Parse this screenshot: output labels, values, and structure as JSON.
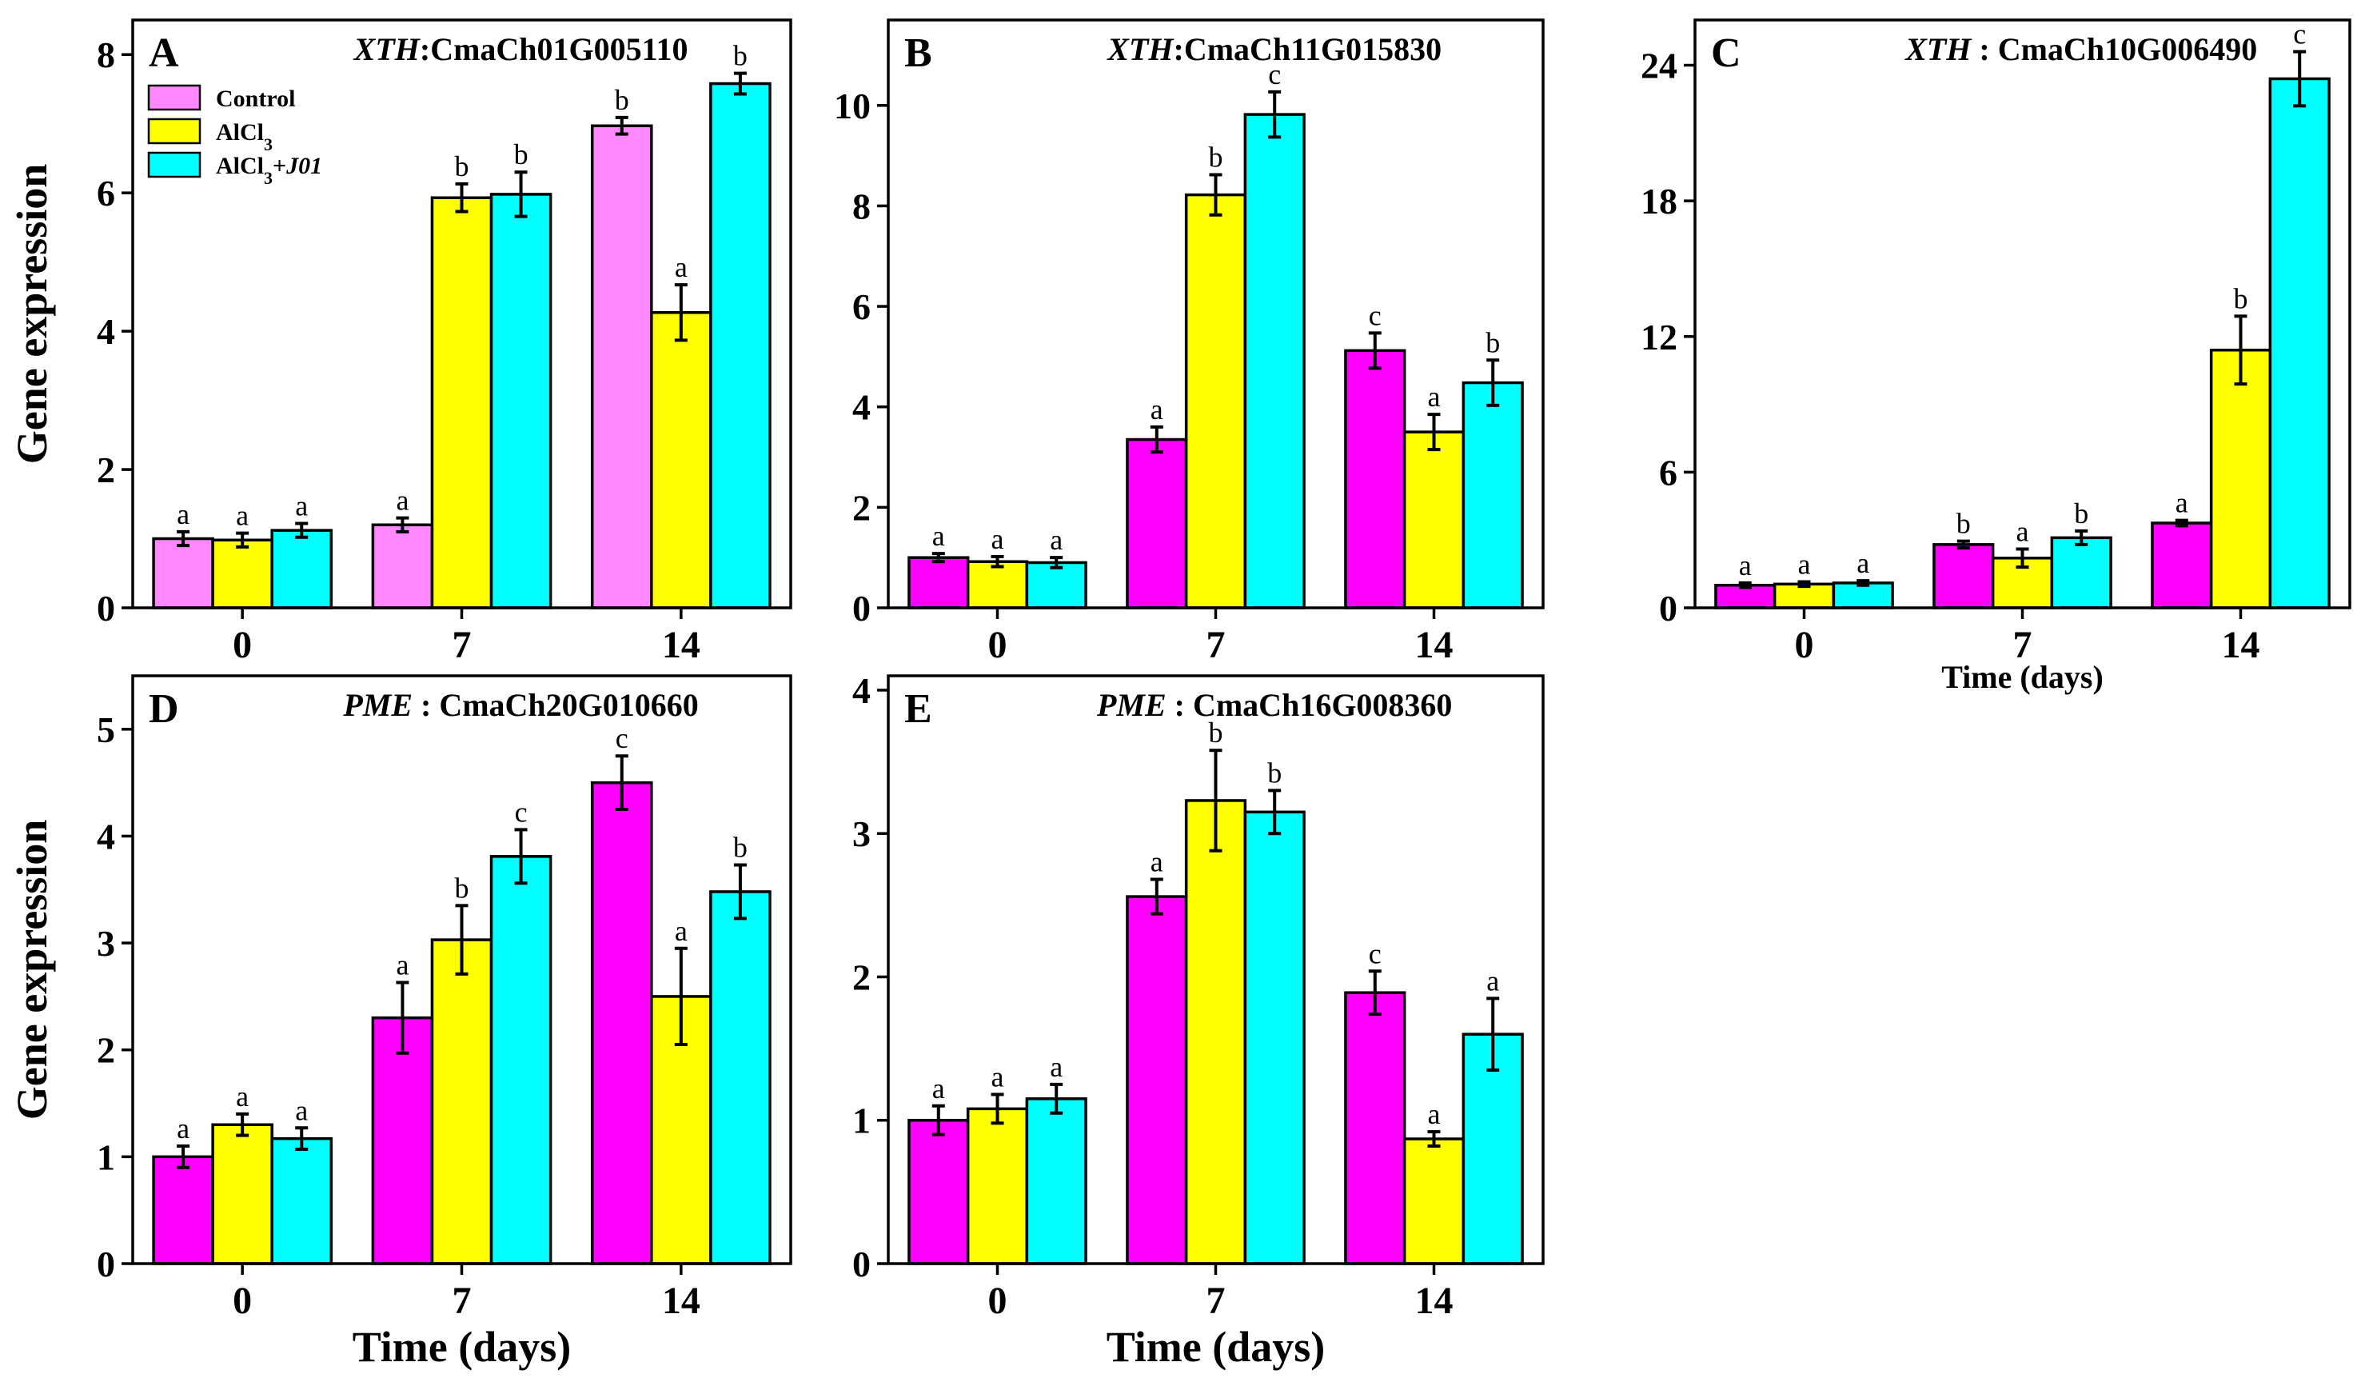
{
  "chart_data": [
    {
      "type": "bar",
      "panel_label": "A",
      "title": {
        "gene": "XTH",
        "sep": ":",
        "id": "CmaCh01G005110"
      },
      "categories": [
        "0",
        "7",
        "14"
      ],
      "ylim": [
        0,
        8.5
      ],
      "yticks": [
        "0",
        "2",
        "4",
        "6",
        "8"
      ],
      "ylabel": "Gene expression",
      "xlabel": "",
      "colors": [
        "#ff88ff",
        "#ffff00",
        "#00ffff"
      ],
      "legend": {
        "position": "top-left",
        "entries": [
          {
            "text": "Control"
          },
          {
            "text": "AlCl",
            "sub": "3"
          },
          {
            "text": "AlCl",
            "sub": "3",
            "tail": "+",
            "tail_italic": "J01"
          }
        ]
      },
      "series": [
        {
          "name": "Control",
          "values": [
            1.0,
            1.2,
            6.97
          ],
          "errors": [
            0.1,
            0.1,
            0.12
          ],
          "letters": [
            "a",
            "a",
            "b"
          ]
        },
        {
          "name": "AlCl3",
          "values": [
            0.98,
            5.93,
            4.27
          ],
          "errors": [
            0.1,
            0.2,
            0.4
          ],
          "letters": [
            "a",
            "b",
            "a"
          ]
        },
        {
          "name": "AlCl3+J01",
          "values": [
            1.12,
            5.98,
            7.58
          ],
          "errors": [
            0.1,
            0.32,
            0.15
          ],
          "letters": [
            "a",
            "b",
            "b"
          ]
        }
      ]
    },
    {
      "type": "bar",
      "panel_label": "B",
      "title": {
        "gene": "XTH",
        "sep": ":",
        "id": "CmaCh11G015830"
      },
      "categories": [
        "0",
        "7",
        "14"
      ],
      "ylim": [
        0,
        11.7
      ],
      "yticks": [
        "0",
        "2",
        "4",
        "6",
        "8",
        "10"
      ],
      "ylabel": "",
      "xlabel": "",
      "colors": [
        "#ff00ff",
        "#ffff00",
        "#00ffff"
      ],
      "series": [
        {
          "name": "Control",
          "values": [
            1.0,
            3.35,
            5.12
          ],
          "errors": [
            0.08,
            0.25,
            0.35
          ],
          "letters": [
            "a",
            "a",
            "c"
          ]
        },
        {
          "name": "AlCl3",
          "values": [
            0.92,
            8.22,
            3.5
          ],
          "errors": [
            0.1,
            0.4,
            0.35
          ],
          "letters": [
            "a",
            "b",
            "a"
          ]
        },
        {
          "name": "AlCl3+J01",
          "values": [
            0.9,
            9.82,
            4.48
          ],
          "errors": [
            0.1,
            0.45,
            0.45
          ],
          "letters": [
            "a",
            "c",
            "b"
          ]
        }
      ]
    },
    {
      "type": "bar",
      "panel_label": "C",
      "title": {
        "gene": "XTH",
        "sep": " : ",
        "id": "CmaCh10G006490"
      },
      "categories": [
        "0",
        "7",
        "14"
      ],
      "ylim": [
        0,
        26
      ],
      "yticks": [
        "0",
        "6",
        "12",
        "18",
        "24"
      ],
      "ylabel": "",
      "xlabel": "Time (days)",
      "colors": [
        "#ff00ff",
        "#ffff00",
        "#00ffff"
      ],
      "series": [
        {
          "name": "Control",
          "values": [
            1.0,
            2.8,
            3.75
          ],
          "errors": [
            0.1,
            0.15,
            0.12
          ],
          "letters": [
            "a",
            "b",
            "a"
          ]
        },
        {
          "name": "AlCl3",
          "values": [
            1.05,
            2.2,
            11.4
          ],
          "errors": [
            0.1,
            0.4,
            1.5
          ],
          "letters": [
            "a",
            "a",
            "b"
          ]
        },
        {
          "name": "AlCl3+J01",
          "values": [
            1.1,
            3.1,
            23.4
          ],
          "errors": [
            0.1,
            0.3,
            1.2
          ],
          "letters": [
            "a",
            "b",
            "c"
          ]
        }
      ]
    },
    {
      "type": "bar",
      "panel_label": "D",
      "title": {
        "gene": "PME",
        "sep": " : ",
        "id": "CmaCh20G010660"
      },
      "categories": [
        "0",
        "7",
        "14"
      ],
      "ylim": [
        0,
        5.5
      ],
      "yticks": [
        "0",
        "1",
        "2",
        "3",
        "4",
        "5"
      ],
      "ylabel": "Gene expression",
      "xlabel": "Time (days)",
      "colors": [
        "#ff00ff",
        "#ffff00",
        "#00ffff"
      ],
      "series": [
        {
          "name": "Control",
          "values": [
            1.0,
            2.3,
            4.5
          ],
          "errors": [
            0.1,
            0.33,
            0.25
          ],
          "letters": [
            "a",
            "a",
            "c"
          ]
        },
        {
          "name": "AlCl3",
          "values": [
            1.3,
            3.03,
            2.5
          ],
          "errors": [
            0.1,
            0.32,
            0.45
          ],
          "letters": [
            "a",
            "b",
            "a"
          ]
        },
        {
          "name": "AlCl3+J01",
          "values": [
            1.17,
            3.81,
            3.48
          ],
          "errors": [
            0.1,
            0.25,
            0.25
          ],
          "letters": [
            "a",
            "c",
            "b"
          ]
        }
      ]
    },
    {
      "type": "bar",
      "panel_label": "E",
      "title": {
        "gene": "PME",
        "sep": " : ",
        "id": "CmaCh16G008360"
      },
      "categories": [
        "0",
        "7",
        "14"
      ],
      "ylim": [
        0,
        4.1
      ],
      "yticks": [
        "0",
        "1",
        "2",
        "3",
        "4"
      ],
      "ylabel": "",
      "xlabel": "Time (days)",
      "colors": [
        "#ff00ff",
        "#ffff00",
        "#00ffff"
      ],
      "series": [
        {
          "name": "Control",
          "values": [
            1.0,
            2.56,
            1.89
          ],
          "errors": [
            0.1,
            0.12,
            0.15
          ],
          "letters": [
            "a",
            "a",
            "c"
          ]
        },
        {
          "name": "AlCl3",
          "values": [
            1.08,
            3.23,
            0.87
          ],
          "errors": [
            0.1,
            0.35,
            0.05
          ],
          "letters": [
            "a",
            "b",
            "a"
          ]
        },
        {
          "name": "AlCl3+J01",
          "values": [
            1.15,
            3.15,
            1.6
          ],
          "errors": [
            0.1,
            0.15,
            0.25
          ],
          "letters": [
            "a",
            "b",
            "a"
          ]
        }
      ]
    }
  ]
}
